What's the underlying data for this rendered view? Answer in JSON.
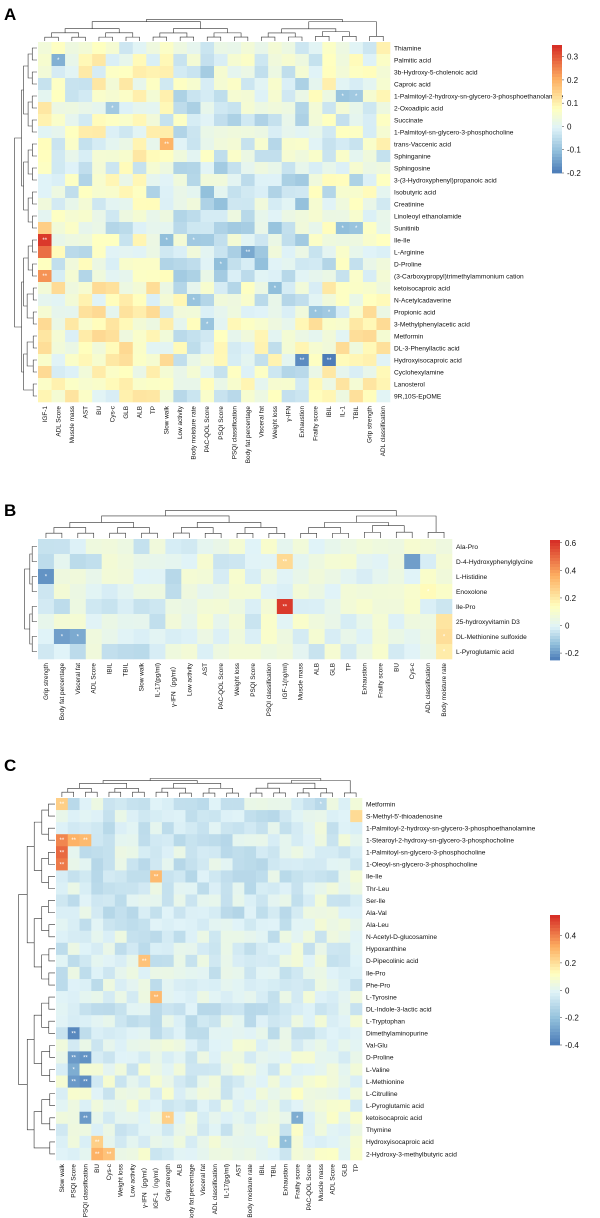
{
  "chart_data": [
    {
      "panel": "A",
      "type": "heatmap",
      "rows": [
        "Thiamine",
        "Palmitic acid",
        "3b-Hydroxy-5-cholenoic acid",
        "Caproic acid",
        "1-Palmitoyl-2-hydroxy-sn-glycero-3-phosphoethanolamine",
        "2-Oxoadipic acid",
        "Succinate",
        "1-Palmitoyl-sn-glycero-3-phosphocholine",
        "trans-Vaccenic acid",
        "Sphinganine",
        "Sphingosine",
        "3-(3-Hydroxyphenyl)propanoic acid",
        "Isobutyric acid",
        "Creatinine",
        "Linoleoyl ethanolamide",
        "Sunitinib",
        "Ile-Ile",
        "L-Arginine",
        "D-Proline",
        "(3-Carboxypropyl)trimethylammonium cation",
        "ketoisocaproic acid",
        "N-Acetylcadaverine",
        "Propionic acid",
        "3-Methylphenylacetic acid",
        "Metformin",
        "DL-3-Phenyllactic acid",
        "Hydroxyisocaproic acid",
        "Cyclohexylamine",
        "Lanosterol",
        "9R,10S-EpOME"
      ],
      "columns": [
        "IGF-1",
        "ADL Score",
        "Muscle mass",
        "AST",
        "BU",
        "Cys-c",
        "GLB",
        "ALB",
        "TP",
        "Slow walk",
        "Low activity",
        "Body moisture rate",
        "PAC-QOL Score",
        "PSQI Score",
        "PSQI classification",
        "Body fat percentage",
        "Visceral fat",
        "Weight loss",
        "γ-IFN",
        "Exhaustion",
        "Frailty score",
        "IBIL",
        "IL-1",
        "TBIL",
        "Grip strength",
        "ADL classification"
      ],
      "scale": {
        "min": -0.2,
        "max": 0.35,
        "ticks": [
          "-0.2",
          "-0.1",
          "0",
          "0.1",
          "0.2",
          "0.3"
        ],
        "tick_values": [
          -0.2,
          -0.1,
          0,
          0.1,
          0.2,
          0.3
        ]
      },
      "highlights": [
        {
          "row": "Ile-Ile",
          "col": "IGF-1",
          "value": 0.34,
          "sig": "**"
        },
        {
          "row": "L-Arginine",
          "col": "IGF-1",
          "value": 0.28,
          "sig": ""
        },
        {
          "row": "(3-Carboxypropyl)trimethylammonium cation",
          "col": "IGF-1",
          "value": 0.24,
          "sig": "**"
        },
        {
          "row": "Sunitinib",
          "col": "IGF-1",
          "value": 0.16,
          "sig": ""
        },
        {
          "row": "Palmitic acid",
          "col": "ADL Score",
          "value": -0.12,
          "sig": "*"
        },
        {
          "row": "trans-Vaccenic acid",
          "col": "Slow walk",
          "value": 0.2,
          "sig": "**"
        },
        {
          "row": "Hydroxyisocaproic acid",
          "col": "Exhaustion",
          "value": -0.17,
          "sig": "**"
        },
        {
          "row": "Hydroxyisocaproic acid",
          "col": "IBIL",
          "value": -0.19,
          "sig": "**"
        },
        {
          "row": "L-Arginine",
          "col": "Body fat percentage",
          "value": -0.13,
          "sig": "**"
        },
        {
          "row": "D-Proline",
          "col": "PSQI Score",
          "value": -0.1,
          "sig": "*"
        },
        {
          "row": "Sunitinib",
          "col": "IL-1",
          "value": -0.1,
          "sig": "*"
        },
        {
          "row": "Sunitinib",
          "col": "TBIL",
          "value": -0.09,
          "sig": "*"
        },
        {
          "row": "Ile-Ile",
          "col": "Slow walk",
          "value": -0.1,
          "sig": "*"
        },
        {
          "row": "Ile-Ile",
          "col": "Body moisture rate",
          "value": -0.08,
          "sig": "*"
        },
        {
          "row": "1-Palmitoyl-2-hydroxy-sn-glycero-3-phosphoethanolamine",
          "col": "IL-1",
          "value": -0.09,
          "sig": "*"
        },
        {
          "row": "1-Palmitoyl-2-hydroxy-sn-glycero-3-phosphoethanolamine",
          "col": "TBIL",
          "value": -0.08,
          "sig": "*"
        },
        {
          "row": "Propionic acid",
          "col": "Frailty score",
          "value": -0.09,
          "sig": "*"
        },
        {
          "row": "Propionic acid",
          "col": "IBIL",
          "value": -0.08,
          "sig": "*"
        },
        {
          "row": "ketoisocaproic acid",
          "col": "Weight loss",
          "value": -0.1,
          "sig": "*"
        },
        {
          "row": "3-Methylphenylacetic acid",
          "col": "PAC-QOL Score",
          "value": -0.09,
          "sig": "*"
        },
        {
          "row": "N-Acetylcadaverine",
          "col": "Body moisture rate",
          "value": -0.09,
          "sig": "*"
        },
        {
          "row": "2-Oxoadipic acid",
          "col": "Cys-c",
          "value": -0.08,
          "sig": "*"
        }
      ]
    },
    {
      "panel": "B",
      "type": "heatmap",
      "rows": [
        "Ala-Pro",
        "D-4-Hydroxyphenylglycine",
        "L-Histidine",
        "Enoxolone",
        "Ile-Pro",
        "25-hydroxyvitamin D3",
        "DL-Methionine sulfoxide",
        "L-Pyroglutamic acid"
      ],
      "columns": [
        "Grip strength",
        "Body fat percentage",
        "Visceral fat",
        "ADL Score",
        "IBIL",
        "TBIL",
        "Slow walk",
        "IL-17(pg/ml)",
        "γ-IFN（pg/ml）",
        "Low activity",
        "AST",
        "PAC-QOL Score",
        "Weight loss",
        "PSQI Score",
        "PSQI classification",
        "IGF-1(ng/ml)",
        "Muscle mass",
        "ALB",
        "GLB",
        "TP",
        "Exhaustion",
        "Frailty score",
        "BU",
        "Cys-c",
        "ADL classification",
        "Body moisture rate"
      ],
      "scale": {
        "min": -0.25,
        "max": 0.62,
        "ticks": [
          "-0.2",
          "0",
          "0.2",
          "0.4",
          "0.6"
        ],
        "tick_values": [
          -0.2,
          0,
          0.2,
          0.4,
          0.6
        ]
      },
      "highlights": [
        {
          "row": "Ile-Pro",
          "col": "IGF-1(ng/ml)",
          "value": 0.6,
          "sig": "**"
        },
        {
          "row": "D-4-Hydroxyphenylglycine",
          "col": "IGF-1(ng/ml)",
          "value": 0.25,
          "sig": "**"
        },
        {
          "row": "L-Histidine",
          "col": "Grip strength",
          "value": -0.2,
          "sig": "*"
        },
        {
          "row": "DL-Methionine sulfoxide",
          "col": "Body fat percentage",
          "value": -0.18,
          "sig": "*"
        },
        {
          "row": "DL-Methionine sulfoxide",
          "col": "Visceral fat",
          "value": -0.16,
          "sig": "*"
        },
        {
          "row": "D-4-Hydroxyphenylglycine",
          "col": "Cys-c",
          "value": -0.18,
          "sig": ""
        },
        {
          "row": "25-hydroxyvitamin D3",
          "col": "Body moisture rate",
          "value": 0.22,
          "sig": ""
        },
        {
          "row": "DL-Methionine sulfoxide",
          "col": "Body moisture rate",
          "value": 0.24,
          "sig": "*"
        },
        {
          "row": "L-Pyroglutamic acid",
          "col": "Body moisture rate",
          "value": 0.2,
          "sig": "*"
        },
        {
          "row": "Enoxolone",
          "col": "ADL classification",
          "value": 0.16,
          "sig": "*"
        }
      ]
    },
    {
      "panel": "C",
      "type": "heatmap",
      "rows": [
        "Metformin",
        "S-Methyl-5'-thioadenosine",
        "1-Palmitoyl-2-hydroxy-sn-glycero-3-phosphoethanolamine",
        "1-Stearoyl-2-hydroxy-sn-glycero-3-phosphocholine",
        "1-Palmitoyl-sn-glycero-3-phosphocholine",
        "1-Oleoyl-sn-glycero-3-phosphocholine",
        "Ile-Ile",
        "Thr-Leu",
        "Ser-Ile",
        "Ala-Val",
        "Ala-Leu",
        "N-Acetyl-D-glucosamine",
        "Hypoxanthine",
        "D-Pipecolinic acid",
        "Ile-Pro",
        "Phe-Pro",
        "L-Tyrosine",
        "DL-Indole-3-lactic acid",
        "L-Tryptophan",
        "Dimethylaminopurine",
        "Val-Glu",
        "D-Proline",
        "L-Valine",
        "L-Methionine",
        "L-Citrulline",
        "L-Pyroglutamic acid",
        "ketoisocaproic acid",
        "Thymine",
        "Hydroxyisocaproic acid",
        "2-Hydroxy-3-methylbutyric acid"
      ],
      "columns": [
        "Slow walk",
        "PSQI Score",
        "PSQI classification",
        "BU",
        "Cys-c",
        "Weight loss",
        "Low activity",
        "γ-IFN（pg/ml）",
        "IGF-1（ng/ml）",
        "Grip strength",
        "ALB",
        "Body fat percentage",
        "Visceral fat",
        "ADL classification",
        "IL-17(pg/ml)",
        "AST",
        "Body moisture rate",
        "IBIL",
        "TBIL",
        "Exhaustion",
        "Frailty score",
        "PAC-QOL Score",
        "Muscle mass",
        "ADL Score",
        "GLB",
        "TP"
      ],
      "scale": {
        "min": -0.4,
        "max": 0.55,
        "ticks": [
          "-0.4",
          "-0.2",
          "0",
          "0.2",
          "0.4"
        ],
        "tick_values": [
          -0.4,
          -0.2,
          0,
          0.2,
          0.4
        ]
      },
      "highlights": [
        {
          "row": "1-Palmitoyl-sn-glycero-3-phosphocholine",
          "col": "Slow walk",
          "value": 0.45,
          "sig": "**"
        },
        {
          "row": "1-Stearoyl-2-hydroxy-sn-glycero-3-phosphocholine",
          "col": "Slow walk",
          "value": 0.4,
          "sig": "**"
        },
        {
          "row": "1-Oleoyl-sn-glycero-3-phosphocholine",
          "col": "Slow walk",
          "value": 0.42,
          "sig": "**"
        },
        {
          "row": "1-Stearoyl-2-hydroxy-sn-glycero-3-phosphocholine",
          "col": "PSQI Score",
          "value": 0.32,
          "sig": "**"
        },
        {
          "row": "1-Stearoyl-2-hydroxy-sn-glycero-3-phosphocholine",
          "col": "PSQI classification",
          "value": 0.3,
          "sig": "**"
        },
        {
          "row": "Metformin",
          "col": "Slow walk",
          "value": 0.25,
          "sig": "**"
        },
        {
          "row": "Ile-Ile",
          "col": "IGF-1（ng/ml）",
          "value": 0.3,
          "sig": "**"
        },
        {
          "row": "D-Pipecolinic acid",
          "col": "γ-IFN（pg/ml）",
          "value": 0.28,
          "sig": "**"
        },
        {
          "row": "L-Tyrosine",
          "col": "IGF-1（ng/ml）",
          "value": 0.3,
          "sig": "**"
        },
        {
          "row": "ketoisocaproic acid",
          "col": "Grip strength",
          "value": 0.25,
          "sig": "**"
        },
        {
          "row": "Hydroxyisocaproic acid",
          "col": "BU",
          "value": 0.25,
          "sig": "**"
        },
        {
          "row": "2-Hydroxy-3-methylbutyric acid",
          "col": "BU",
          "value": 0.32,
          "sig": "**"
        },
        {
          "row": "2-Hydroxy-3-methylbutyric acid",
          "col": "Cys-c",
          "value": 0.28,
          "sig": "**"
        },
        {
          "row": "Dimethylaminopurine",
          "col": "PSQI Score",
          "value": -0.35,
          "sig": "**"
        },
        {
          "row": "D-Proline",
          "col": "PSQI Score",
          "value": -0.3,
          "sig": "**"
        },
        {
          "row": "D-Proline",
          "col": "PSQI classification",
          "value": -0.32,
          "sig": "**"
        },
        {
          "row": "L-Methionine",
          "col": "PSQI Score",
          "value": -0.3,
          "sig": "**"
        },
        {
          "row": "L-Methionine",
          "col": "PSQI classification",
          "value": -0.33,
          "sig": "**"
        },
        {
          "row": "ketoisocaproic acid",
          "col": "PSQI classification",
          "value": -0.3,
          "sig": "**"
        },
        {
          "row": "L-Valine",
          "col": "PSQI Score",
          "value": -0.25,
          "sig": "*"
        },
        {
          "row": "ketoisocaproic acid",
          "col": "Frailty score",
          "value": -0.25,
          "sig": "*"
        },
        {
          "row": "Metformin",
          "col": "Muscle mass",
          "value": -0.1,
          "sig": "*"
        },
        {
          "row": "S-Methyl-5'-thioadenosine",
          "col": "TP",
          "value": 0.22,
          "sig": ""
        },
        {
          "row": "Hydroxyisocaproic acid",
          "col": "Exhaustion",
          "value": -0.2,
          "sig": "*"
        }
      ]
    }
  ]
}
